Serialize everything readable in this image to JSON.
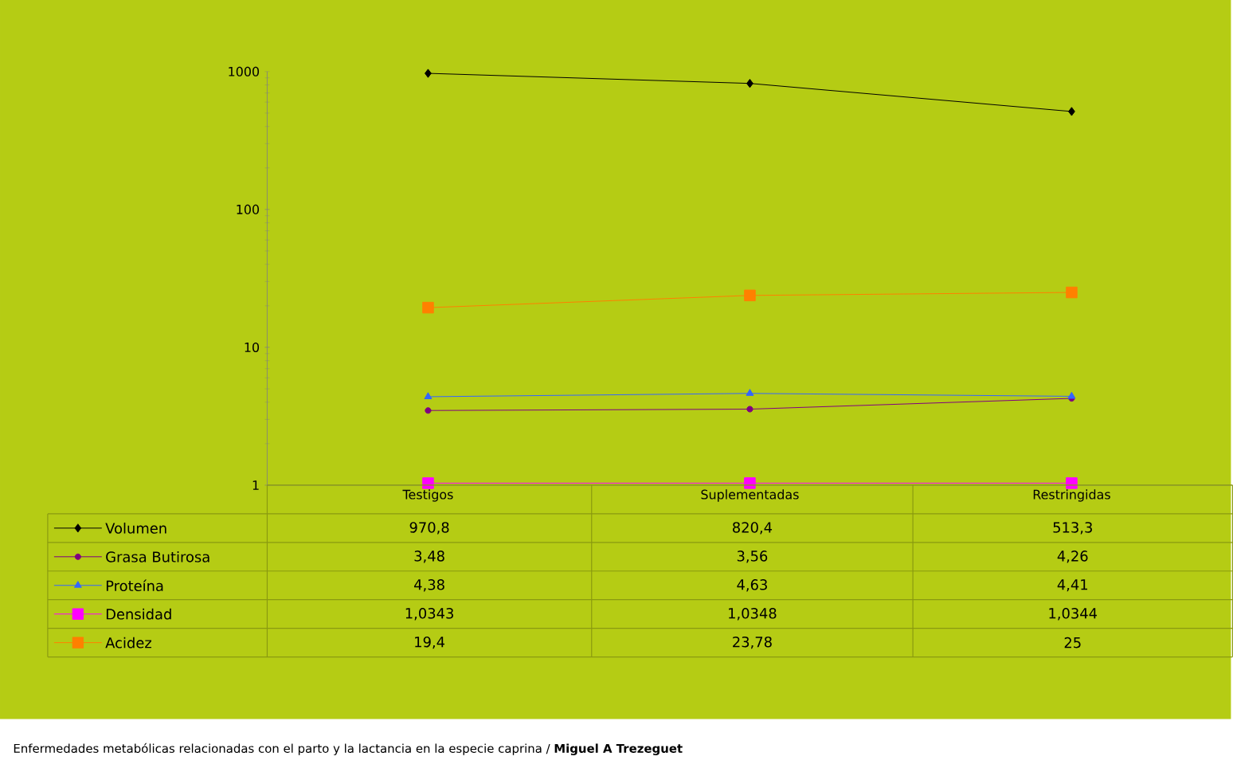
{
  "chart_data": {
    "type": "line",
    "categories": [
      "Testigos",
      "Suplementadas",
      "Restringidas"
    ],
    "log": true,
    "ylim": [
      1,
      1000
    ],
    "yticks": [
      1,
      10,
      100,
      1000
    ],
    "legend": "bottom",
    "grid": false,
    "series": [
      {
        "name": "Volumen",
        "color": "#000000",
        "marker": "diamond",
        "values": [
          970.8,
          820.4,
          513.3
        ],
        "value_labels": [
          "970,8",
          "820,4",
          "513,3"
        ]
      },
      {
        "name": "Grasa Butirosa",
        "color": "#800080",
        "marker": "circle",
        "values": [
          3.48,
          3.56,
          4.26
        ],
        "value_labels": [
          "3,48",
          "3,56",
          "4,26"
        ]
      },
      {
        "name": "Proteína",
        "color": "#3366ff",
        "marker": "triangle",
        "values": [
          4.38,
          4.63,
          4.41
        ],
        "value_labels": [
          "4,38",
          "4,63",
          "4,41"
        ]
      },
      {
        "name": "Densidad",
        "color": "#ff00ff",
        "marker": "square",
        "values": [
          1.0343,
          1.0348,
          1.0344
        ],
        "value_labels": [
          "1,0343",
          "1,0348",
          "1,0344"
        ]
      },
      {
        "name": "Acidez",
        "color": "#ff8000",
        "marker": "square",
        "values": [
          19.4,
          23.78,
          25
        ],
        "value_labels": [
          "19,4",
          "23,78",
          "25"
        ]
      }
    ],
    "annotations": [
      "Enfermedades metabólicas relacionadas con el parto y la lactancia en la especie caprina / **Miguel A Trezeguet**"
    ]
  }
}
